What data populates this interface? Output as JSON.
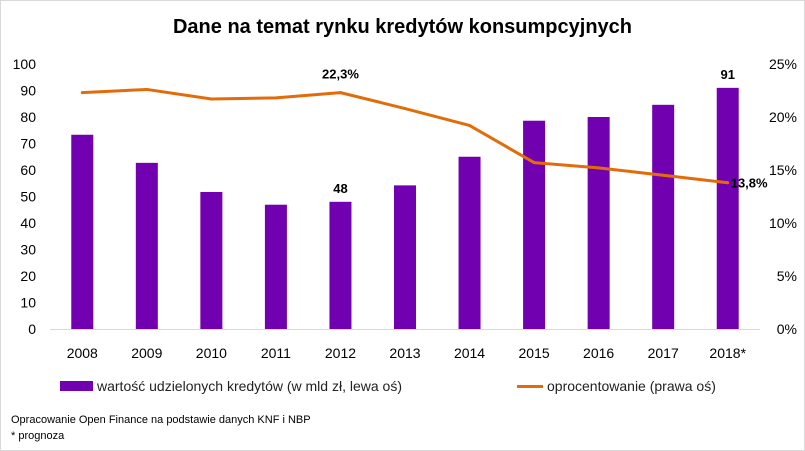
{
  "chart_data": {
    "type": "bar",
    "title": "Dane na temat rynku kredytów konsumpcyjnych",
    "categories": [
      "2008",
      "2009",
      "2010",
      "2011",
      "2012",
      "2013",
      "2014",
      "2015",
      "2016",
      "2017",
      "2018*"
    ],
    "series": [
      {
        "name": "wartość udzielonych kredytów (w mld zł, lewa oś)",
        "type": "bar",
        "axis": "left",
        "color": "#7000b0",
        "values": [
          73.3,
          62.7,
          51.7,
          46.9,
          48,
          54.2,
          65,
          78.6,
          80,
          84.6,
          91
        ]
      },
      {
        "name": "oprocentowanie (prawa oś)",
        "type": "line",
        "axis": "right",
        "color": "#e36c0a",
        "values": [
          22.3,
          22.6,
          21.7,
          21.8,
          22.3,
          20.8,
          19.2,
          15.7,
          15.2,
          14.5,
          13.8
        ]
      }
    ],
    "left_axis": {
      "ylim": [
        0,
        100
      ],
      "ticks": [
        "0",
        "10",
        "20",
        "30",
        "40",
        "50",
        "60",
        "70",
        "80",
        "90",
        "100"
      ]
    },
    "right_axis": {
      "ylim": [
        0,
        25
      ],
      "ticks": [
        "0%",
        "5%",
        "10%",
        "15%",
        "20%",
        "25%"
      ]
    },
    "data_labels": [
      {
        "series": 0,
        "index": 4,
        "text": "48"
      },
      {
        "series": 0,
        "index": 10,
        "text": "91"
      },
      {
        "series": 1,
        "index": 4,
        "text": "22,3%"
      },
      {
        "series": 1,
        "index": 10,
        "text": "13,8%"
      }
    ],
    "legend": "bottom",
    "grid": false
  },
  "notes": {
    "source": "Opracowanie Open Finance na podstawie danych KNF i NBP",
    "footnote": "* prognoza"
  }
}
